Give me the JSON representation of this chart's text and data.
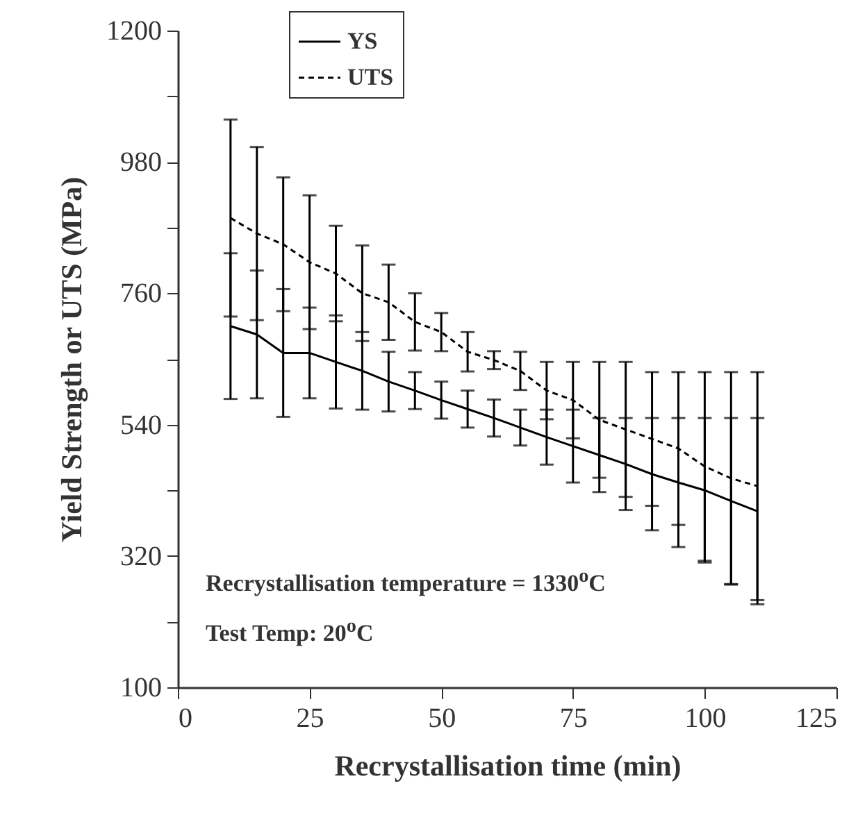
{
  "chart_data": {
    "type": "line",
    "xlabel": "Recrystallisation time (min)",
    "ylabel": "Yield Strength or UTS (MPa)",
    "x": [
      10,
      15,
      20,
      25,
      30,
      35,
      40,
      45,
      50,
      55,
      60,
      65,
      70,
      75,
      80,
      85,
      90,
      95,
      100,
      105,
      110
    ],
    "series": [
      {
        "name": "YS",
        "color": "#000000",
        "line_style": "solid",
        "values": [
          705,
          691,
          660,
          660,
          645,
          630,
          612,
          597,
          581,
          566,
          551,
          535,
          519,
          504,
          489,
          474,
          457,
          443,
          430,
          412,
          395
        ],
        "errors": [
          122,
          107,
          107,
          76,
          78,
          65,
          50,
          31,
          31,
          31,
          31,
          30,
          46,
          61,
          62,
          77,
          94,
          108,
          121,
          139,
          156
        ]
      },
      {
        "name": "UTS",
        "color": "#000000",
        "line_style": "dashed",
        "values": [
          886,
          860,
          842,
          812,
          793,
          760,
          745,
          712,
          695,
          662,
          648,
          630,
          597,
          581,
          548,
          532,
          516,
          500,
          470,
          450,
          437
        ],
        "errors": [
          165,
          145,
          112,
          112,
          80,
          80,
          63,
          48,
          32,
          33,
          15,
          32,
          48,
          64,
          97,
          113,
          112,
          128,
          158,
          178,
          191
        ]
      }
    ],
    "xlim": [
      0,
      125
    ],
    "xticks": [
      0,
      25,
      50,
      75,
      100,
      125
    ],
    "ylim": [
      100,
      1200
    ],
    "yticks": [
      100,
      {
        "value": 210,
        "label": null
      },
      320,
      {
        "value": 430,
        "label": null
      },
      540,
      {
        "value": 650,
        "label": null
      },
      760,
      {
        "value": 870,
        "label": null
      },
      980,
      {
        "value": 1090,
        "label": null
      },
      1200
    ],
    "grid": false,
    "legend": "top left",
    "marker": "none",
    "annotations": [
      "Recrystallisation temperature = 1330$^{o}$C",
      "Test Temp: 20$^{o}$C"
    ]
  }
}
